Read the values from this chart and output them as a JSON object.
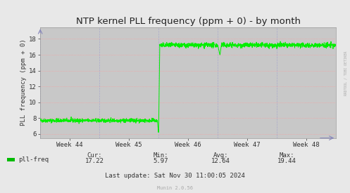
{
  "title": "NTP kernel PLL frequency (ppm + 0) - by month",
  "ylabel": "PLL frequency (ppm + 0)",
  "bg_color": "#e8e8e8",
  "plot_bg_color": "#c8c8c8",
  "line_color": "#00ee00",
  "fill_color": "#00ee00",
  "grid_color_h": "#ff9999",
  "grid_color_v": "#aaaacc",
  "ylim": [
    5.5,
    19.5
  ],
  "yticks": [
    6,
    8,
    10,
    12,
    14,
    16,
    18
  ],
  "week_labels": [
    "Week 44",
    "Week 45",
    "Week 46",
    "Week 47",
    "Week 48"
  ],
  "legend_label": "pll-freq",
  "legend_color": "#00bb00",
  "stats_cur_label": "Cur:",
  "stats_min_label": "Min:",
  "stats_avg_label": "Avg:",
  "stats_max_label": "Max:",
  "stats_cur": "17.22",
  "stats_min": "5.97",
  "stats_avg": "12.64",
  "stats_max": "19.44",
  "last_update": "Last update: Sat Nov 30 11:00:05 2024",
  "munin_version": "Munin 2.0.56",
  "rrdtool_label": "RRDTOOL / TOBI OETIKER"
}
